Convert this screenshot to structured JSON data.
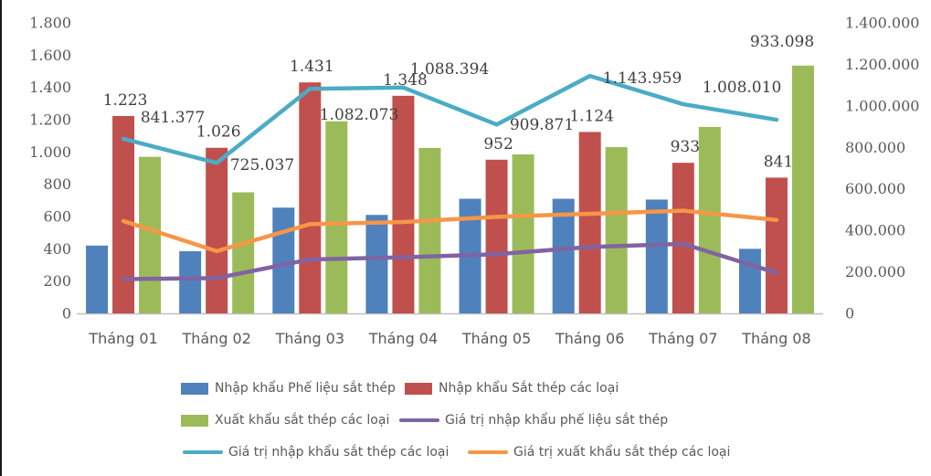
{
  "chart_data": {
    "type": "combo-bar-line",
    "title": "",
    "categories": [
      "Tháng 01",
      "Tháng 02",
      "Tháng 03",
      "Tháng 04",
      "Tháng 05",
      "Tháng 06",
      "Tháng 07",
      "Tháng 08"
    ],
    "left_axis": {
      "min": 0,
      "max": 1800,
      "step": 200,
      "ticks": [
        "1.800",
        "1.600",
        "1.400",
        "1.200",
        "1.000",
        "800",
        "600",
        "400",
        "200",
        "0"
      ]
    },
    "right_axis": {
      "min": 0,
      "max": 1400000,
      "step": 200000,
      "ticks": [
        "1.400.000",
        "1.200.000",
        "1.000.000",
        "800.000",
        "600.000",
        "400.000",
        "200.000",
        "0"
      ]
    },
    "grid": "off",
    "legend_position": "bottom",
    "series": [
      {
        "name": "Nhập khẩu Phế liệu sắt thép",
        "type": "bar",
        "axis": "left",
        "color": "#4F81BD",
        "values": [
          420,
          385,
          655,
          610,
          710,
          710,
          705,
          400
        ]
      },
      {
        "name": "Nhập khẩu Sắt thép các loại",
        "type": "bar",
        "axis": "left",
        "color": "#C0504D",
        "values": [
          1223,
          1026,
          1431,
          1348,
          952,
          1124,
          933,
          841
        ],
        "labels": [
          "1.223",
          "1.026",
          "1.431",
          "1.348",
          "952",
          "1.124",
          "933",
          "841"
        ]
      },
      {
        "name": "Xuất khẩu sắt thép các loại",
        "type": "bar",
        "axis": "left",
        "color": "#9BBB59",
        "values": [
          970,
          750,
          1190,
          1025,
          985,
          1030,
          1155,
          1535
        ]
      },
      {
        "name": "Giá trị nhập khẩu phế liệu sắt thép",
        "type": "line",
        "axis": "right",
        "color": "#8064A2",
        "values": [
          165000,
          170000,
          260000,
          270000,
          285000,
          320000,
          335000,
          195000
        ]
      },
      {
        "name": "Giá trị nhập khẩu sắt thép các loại",
        "type": "line",
        "axis": "right",
        "color": "#4BACC6",
        "values": [
          841377,
          725037,
          1082073,
          1088394,
          909871,
          1143959,
          1008010,
          933098
        ],
        "labels": [
          "841.377",
          "725.037",
          "1.082.073",
          "1.088.394",
          "909.871",
          "1.143.959",
          "1.008.010",
          "933.098"
        ]
      },
      {
        "name": "Giá trị xuất khẩu sắt thép các loại",
        "type": "line",
        "axis": "right",
        "color": "#F79646",
        "values": [
          445000,
          300000,
          430000,
          440000,
          465000,
          480000,
          495000,
          450000
        ]
      }
    ],
    "colors": {
      "axis_text": "#595959",
      "data_label_text": "#404040",
      "baseline": "#BFBFBF"
    }
  }
}
